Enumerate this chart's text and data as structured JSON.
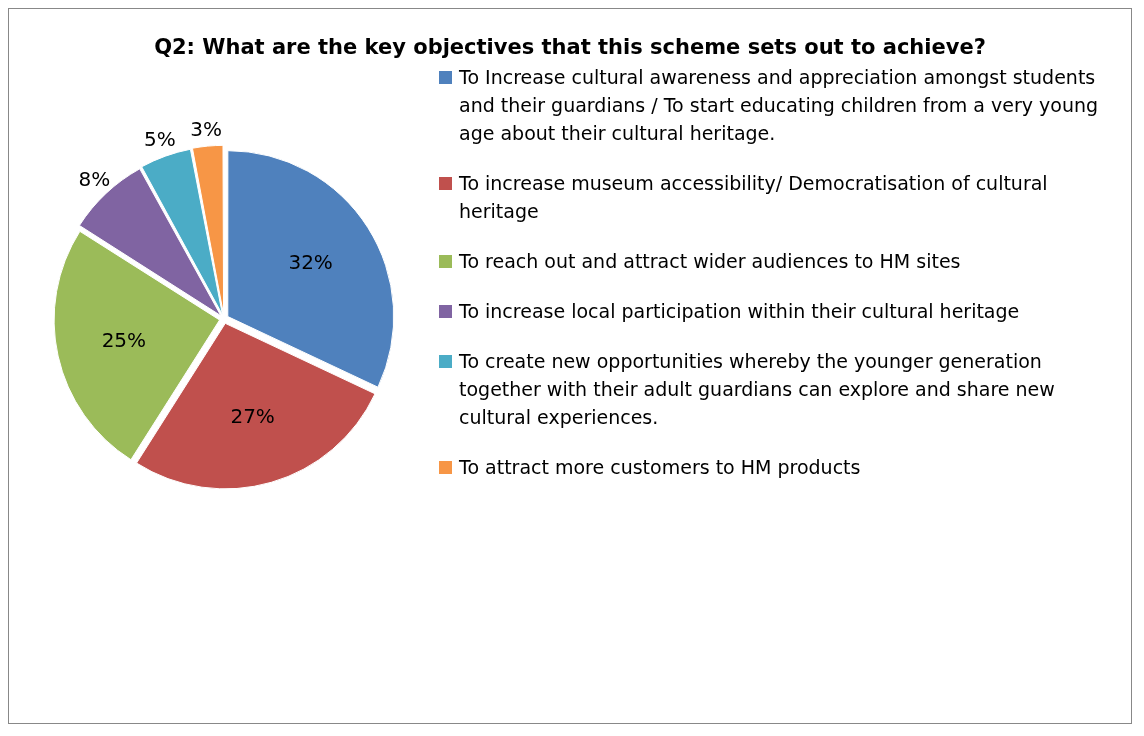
{
  "chart_data": {
    "type": "pie",
    "title": "Q2: What are the key objectives that this scheme sets out to achieve?",
    "categories": [
      "To Increase cultural awareness and appreciation amongst students and their guardians / To start educating children from a very young age about their cultural heritage.",
      "To increase museum accessibility/ Democratisation of cultural heritage",
      "To reach out and attract wider audiences to HM sites",
      "To increase local participation within their cultural heritage",
      "To create new opportunities whereby the younger generation together with their adult guardians can explore and share new cultural experiences.",
      "To attract more customers to HM products"
    ],
    "values": [
      32,
      27,
      25,
      8,
      5,
      3
    ],
    "colors": [
      "#4f81bd",
      "#c0504d",
      "#9bbb59",
      "#8064a2",
      "#4bacc6",
      "#f79646"
    ],
    "value_labels": [
      "32%",
      "27%",
      "25%",
      "8%",
      "5%",
      "3%"
    ],
    "legend": "right"
  }
}
